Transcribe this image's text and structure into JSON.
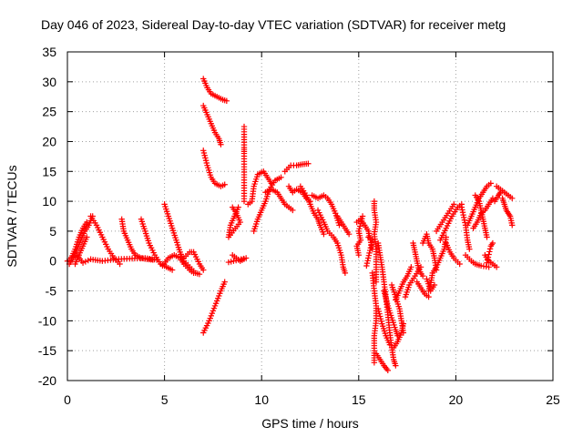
{
  "chart_data": {
    "type": "scatter",
    "title": "Day 046 of 2023, Sidereal Day-to-day VTEC variation (SDTVAR) for receiver metg",
    "xlabel": "GPS time / hours",
    "ylabel": "SDTVAR / TECUs",
    "xlim": [
      0,
      25
    ],
    "ylim": [
      -20,
      35
    ],
    "xticks": [
      "0",
      "5",
      "10",
      "15",
      "20",
      "25"
    ],
    "yticks": [
      "35",
      "30",
      "25",
      "20",
      "15",
      "10",
      "5",
      "0",
      "-5",
      "-10",
      "-15",
      "-20"
    ],
    "grid": true,
    "marker": "plus",
    "color": "#ff0000",
    "segments": [
      [
        [
          0.0,
          0.0
        ],
        [
          0.2,
          0.5
        ],
        [
          0.5,
          1.0
        ],
        [
          0.8,
          -0.3
        ],
        [
          1.2,
          0.3
        ],
        [
          1.8,
          0.0
        ],
        [
          2.5,
          0.3
        ],
        [
          3.2,
          0.4
        ],
        [
          4.0,
          0.5
        ],
        [
          4.6,
          0.2
        ]
      ],
      [
        [
          0.1,
          -0.5
        ],
        [
          0.3,
          0.5
        ],
        [
          0.5,
          2.0
        ],
        [
          0.7,
          3.5
        ],
        [
          0.9,
          5.0
        ],
        [
          1.1,
          6.0
        ],
        [
          1.3,
          7.5
        ]
      ],
      [
        [
          0.2,
          0.5
        ],
        [
          0.4,
          2.0
        ],
        [
          0.6,
          4.0
        ],
        [
          0.8,
          5.5
        ],
        [
          1.0,
          6.5
        ]
      ],
      [
        [
          0.4,
          -0.5
        ],
        [
          0.6,
          1.0
        ],
        [
          0.8,
          2.5
        ],
        [
          1.0,
          4.0
        ]
      ],
      [
        [
          1.2,
          7.5
        ],
        [
          1.5,
          6.0
        ],
        [
          1.8,
          4.0
        ],
        [
          2.1,
          2.0
        ],
        [
          2.4,
          0.5
        ],
        [
          2.7,
          -0.5
        ]
      ],
      [
        [
          2.8,
          7.0
        ],
        [
          2.9,
          5.0
        ],
        [
          3.1,
          3.5
        ],
        [
          3.3,
          2.0
        ],
        [
          3.5,
          1.0
        ],
        [
          3.8,
          0.5
        ],
        [
          4.1,
          0.3
        ],
        [
          4.4,
          0.2
        ]
      ],
      [
        [
          3.8,
          7.0
        ],
        [
          4.0,
          5.0
        ],
        [
          4.2,
          3.0
        ],
        [
          4.5,
          1.0
        ],
        [
          4.8,
          -0.5
        ],
        [
          5.1,
          -1.0
        ],
        [
          5.4,
          -1.5
        ]
      ],
      [
        [
          4.9,
          -0.8
        ],
        [
          5.2,
          0.5
        ],
        [
          5.5,
          1.0
        ],
        [
          5.8,
          0.5
        ],
        [
          6.0,
          -0.5
        ],
        [
          6.3,
          -1.5
        ],
        [
          6.5,
          -2.0
        ]
      ],
      [
        [
          5.0,
          9.5
        ],
        [
          5.2,
          7.5
        ],
        [
          5.4,
          5.5
        ],
        [
          5.6,
          3.5
        ],
        [
          5.8,
          1.5
        ],
        [
          6.0,
          0.0
        ],
        [
          6.3,
          -1.0
        ],
        [
          6.6,
          -2.0
        ],
        [
          6.8,
          -2.2
        ]
      ],
      [
        [
          6.0,
          0.5
        ],
        [
          6.3,
          1.5
        ],
        [
          6.5,
          1.5
        ],
        [
          6.8,
          -0.5
        ],
        [
          7.0,
          -1.5
        ]
      ],
      [
        [
          7.0,
          -12.0
        ],
        [
          7.3,
          -10.0
        ],
        [
          7.6,
          -7.5
        ],
        [
          7.9,
          -5.0
        ],
        [
          8.1,
          -3.5
        ]
      ],
      [
        [
          7.0,
          18.5
        ],
        [
          7.2,
          16.0
        ],
        [
          7.4,
          14.0
        ],
        [
          7.6,
          13.0
        ],
        [
          7.9,
          12.5
        ],
        [
          8.1,
          12.8
        ]
      ],
      [
        [
          7.0,
          26.0
        ],
        [
          7.2,
          24.5
        ],
        [
          7.4,
          23.0
        ],
        [
          7.6,
          21.5
        ],
        [
          7.8,
          20.5
        ],
        [
          7.9,
          19.5
        ]
      ],
      [
        [
          7.0,
          30.5
        ],
        [
          7.2,
          29.0
        ],
        [
          7.4,
          28.0
        ],
        [
          7.7,
          27.5
        ],
        [
          8.0,
          27.0
        ],
        [
          8.2,
          26.8
        ]
      ],
      [
        [
          8.5,
          9.0
        ],
        [
          8.7,
          8.0
        ],
        [
          8.9,
          6.5
        ],
        [
          8.3,
          4.0
        ],
        [
          8.4,
          6.0
        ],
        [
          8.6,
          7.5
        ],
        [
          8.8,
          9.0
        ]
      ],
      [
        [
          8.5,
          1.0
        ],
        [
          8.9,
          0.0
        ],
        [
          9.2,
          0.5
        ],
        [
          8.3,
          -0.2
        ]
      ],
      [
        [
          9.1,
          22.5
        ],
        [
          9.1,
          19.0
        ],
        [
          9.1,
          18.0
        ],
        [
          9.1,
          14.0
        ],
        [
          9.1,
          10.0
        ]
      ],
      [
        [
          9.3,
          9.5
        ],
        [
          9.5,
          10.0
        ],
        [
          9.6,
          12.5
        ],
        [
          9.8,
          14.5
        ],
        [
          10.1,
          15.0
        ],
        [
          10.3,
          14.0
        ],
        [
          10.5,
          13.0
        ]
      ],
      [
        [
          9.6,
          5.0
        ],
        [
          9.8,
          7.0
        ],
        [
          10.0,
          8.5
        ],
        [
          10.2,
          10.0
        ],
        [
          10.4,
          12.0
        ],
        [
          10.7,
          13.5
        ],
        [
          11.0,
          14.0
        ]
      ],
      [
        [
          10.2,
          11.5
        ],
        [
          10.5,
          12.0
        ],
        [
          10.8,
          11.5
        ],
        [
          11.0,
          10.5
        ],
        [
          11.2,
          9.5
        ],
        [
          11.4,
          9.0
        ],
        [
          11.6,
          8.5
        ]
      ],
      [
        [
          11.2,
          15.0
        ],
        [
          11.5,
          16.0
        ],
        [
          11.8,
          16.0
        ],
        [
          12.1,
          16.2
        ],
        [
          12.4,
          16.3
        ]
      ],
      [
        [
          11.4,
          12.5
        ],
        [
          11.6,
          11.5
        ],
        [
          11.8,
          12.0
        ],
        [
          12.1,
          11.5
        ],
        [
          12.3,
          10.5
        ],
        [
          12.5,
          10.0
        ]
      ],
      [
        [
          12.0,
          12.5
        ],
        [
          12.3,
          11.0
        ],
        [
          12.5,
          9.5
        ],
        [
          12.7,
          8.0
        ],
        [
          12.9,
          7.0
        ],
        [
          13.0,
          6.0
        ],
        [
          13.2,
          4.5
        ]
      ],
      [
        [
          12.6,
          11.0
        ],
        [
          12.9,
          10.5
        ],
        [
          13.2,
          11.0
        ],
        [
          13.4,
          10.5
        ],
        [
          13.6,
          9.5
        ],
        [
          13.8,
          8.0
        ],
        [
          14.0,
          6.0
        ]
      ],
      [
        [
          12.9,
          8.5
        ],
        [
          13.2,
          6.5
        ],
        [
          13.4,
          5.0
        ],
        [
          13.7,
          4.0
        ],
        [
          13.9,
          3.0
        ],
        [
          14.1,
          1.0
        ],
        [
          14.2,
          -1.0
        ],
        [
          14.3,
          -2.0
        ]
      ],
      [
        [
          13.9,
          7.5
        ],
        [
          14.1,
          6.5
        ],
        [
          14.3,
          5.5
        ],
        [
          14.5,
          4.5
        ]
      ],
      [
        [
          14.9,
          6.5
        ],
        [
          15.1,
          7.0
        ],
        [
          15.3,
          6.0
        ],
        [
          15.5,
          5.0
        ],
        [
          15.6,
          3.5
        ],
        [
          15.7,
          2.0
        ]
      ],
      [
        [
          15.0,
          1.0
        ],
        [
          14.9,
          2.5
        ],
        [
          15.1,
          3.5
        ],
        [
          15.0,
          5.0
        ],
        [
          15.2,
          7.5
        ]
      ],
      [
        [
          15.4,
          -0.8
        ],
        [
          15.7,
          3.5
        ],
        [
          15.5,
          4.0
        ]
      ],
      [
        [
          15.8,
          10.0
        ],
        [
          15.8,
          8.5
        ],
        [
          15.9,
          6.5
        ],
        [
          15.8,
          4.5
        ],
        [
          15.9,
          2.0
        ],
        [
          15.9,
          -1.0
        ],
        [
          15.9,
          -3.5
        ]
      ],
      [
        [
          15.7,
          -2.0
        ],
        [
          15.8,
          -5.0
        ],
        [
          15.9,
          -7.5
        ],
        [
          15.9,
          -10.0
        ],
        [
          15.8,
          -12.5
        ],
        [
          15.8,
          -15.0
        ],
        [
          15.8,
          -17.0
        ]
      ],
      [
        [
          15.9,
          -15.5
        ],
        [
          16.1,
          -16.5
        ],
        [
          16.3,
          -17.5
        ],
        [
          16.5,
          -18.3
        ]
      ],
      [
        [
          16.0,
          3.0
        ],
        [
          16.1,
          1.0
        ],
        [
          16.2,
          -1.0
        ],
        [
          16.3,
          -3.5
        ],
        [
          16.4,
          -6.0
        ],
        [
          16.5,
          -9.0
        ],
        [
          16.6,
          -12.0
        ],
        [
          16.7,
          -14.5
        ],
        [
          16.8,
          -16.5
        ],
        [
          16.9,
          -17.5
        ]
      ],
      [
        [
          16.0,
          -8.0
        ],
        [
          16.2,
          -10.5
        ],
        [
          16.4,
          -12.5
        ],
        [
          16.6,
          -14.0
        ]
      ],
      [
        [
          16.3,
          -5.0
        ],
        [
          16.5,
          -7.5
        ],
        [
          16.7,
          -9.5
        ],
        [
          16.9,
          -11.5
        ],
        [
          17.0,
          -12.5
        ]
      ],
      [
        [
          16.7,
          -4.0
        ],
        [
          16.9,
          -6.0
        ],
        [
          17.1,
          -8.0
        ],
        [
          17.2,
          -10.0
        ],
        [
          17.3,
          -12.0
        ]
      ],
      [
        [
          16.8,
          -14.5
        ],
        [
          17.0,
          -13.5
        ],
        [
          17.2,
          -12.0
        ],
        [
          17.3,
          -10.5
        ]
      ],
      [
        [
          16.9,
          -6.5
        ],
        [
          17.1,
          -5.0
        ],
        [
          17.3,
          -3.5
        ],
        [
          17.5,
          -2.5
        ],
        [
          17.7,
          -1.0
        ]
      ],
      [
        [
          17.8,
          3.0
        ],
        [
          17.9,
          1.5
        ],
        [
          18.0,
          0.0
        ],
        [
          18.1,
          -1.5
        ],
        [
          18.3,
          -2.5
        ]
      ],
      [
        [
          18.0,
          -3.5
        ],
        [
          18.2,
          -4.5
        ],
        [
          18.4,
          -5.5
        ],
        [
          18.6,
          -6.0
        ]
      ],
      [
        [
          18.3,
          3.0
        ],
        [
          18.5,
          4.5
        ],
        [
          18.6,
          3.0
        ],
        [
          18.8,
          2.0
        ],
        [
          18.9,
          0.5
        ],
        [
          19.0,
          -1.5
        ]
      ],
      [
        [
          18.5,
          -3.0
        ],
        [
          18.7,
          -5.0
        ],
        [
          18.9,
          -4.0
        ]
      ],
      [
        [
          17.4,
          -6.0
        ],
        [
          17.6,
          -4.0
        ],
        [
          17.9,
          -2.5
        ],
        [
          18.2,
          -1.0
        ]
      ],
      [
        [
          18.6,
          -5.0
        ],
        [
          18.7,
          -4.0
        ],
        [
          18.8,
          -2.0
        ],
        [
          19.0,
          -1.0
        ],
        [
          19.2,
          0.5
        ],
        [
          19.4,
          2.0
        ],
        [
          19.5,
          4.0
        ]
      ],
      [
        [
          19.0,
          5.0
        ],
        [
          19.3,
          6.5
        ],
        [
          19.6,
          8.0
        ],
        [
          19.9,
          9.5
        ]
      ],
      [
        [
          19.2,
          3.5
        ],
        [
          19.5,
          5.5
        ],
        [
          19.8,
          7.5
        ],
        [
          20.1,
          9.0
        ],
        [
          20.3,
          9.5
        ]
      ],
      [
        [
          19.5,
          3.0
        ],
        [
          19.7,
          1.5
        ],
        [
          19.9,
          0.5
        ],
        [
          20.2,
          -0.5
        ]
      ],
      [
        [
          20.3,
          9.0
        ],
        [
          20.5,
          6.0
        ],
        [
          20.6,
          3.5
        ],
        [
          20.7,
          2.0
        ]
      ],
      [
        [
          20.5,
          1.0
        ],
        [
          20.8,
          0.0
        ],
        [
          21.0,
          -0.5
        ],
        [
          21.3,
          -0.8
        ],
        [
          21.7,
          -1.0
        ]
      ],
      [
        [
          20.6,
          6.0
        ],
        [
          20.8,
          7.5
        ],
        [
          21.0,
          9.0
        ],
        [
          21.2,
          10.5
        ],
        [
          21.4,
          11.5
        ],
        [
          21.6,
          12.5
        ],
        [
          21.8,
          13.0
        ]
      ],
      [
        [
          20.9,
          5.5
        ],
        [
          21.1,
          6.5
        ],
        [
          21.3,
          8.0
        ],
        [
          21.5,
          8.5
        ],
        [
          21.7,
          9.5
        ],
        [
          21.9,
          10.5
        ]
      ],
      [
        [
          21.0,
          11.0
        ],
        [
          21.2,
          10.0
        ],
        [
          21.3,
          8.5
        ],
        [
          21.4,
          7.0
        ],
        [
          21.5,
          5.5
        ],
        [
          21.6,
          4.0
        ]
      ],
      [
        [
          21.5,
          1.0
        ],
        [
          21.7,
          0.0
        ],
        [
          21.9,
          -0.5
        ],
        [
          22.1,
          -1.0
        ]
      ],
      [
        [
          21.6,
          -0.3
        ],
        [
          21.8,
          2.5
        ],
        [
          21.9,
          3.0
        ]
      ],
      [
        [
          22.1,
          12.5
        ],
        [
          22.3,
          12.0
        ],
        [
          22.5,
          11.5
        ],
        [
          22.7,
          11.0
        ],
        [
          22.9,
          10.5
        ]
      ],
      [
        [
          22.4,
          10.5
        ],
        [
          22.5,
          9.5
        ],
        [
          22.6,
          8.5
        ],
        [
          22.7,
          8.0
        ],
        [
          22.8,
          7.5
        ],
        [
          22.9,
          6.0
        ]
      ],
      [
        [
          22.0,
          10.0
        ],
        [
          22.2,
          11.0
        ],
        [
          22.3,
          11.5
        ]
      ]
    ]
  }
}
